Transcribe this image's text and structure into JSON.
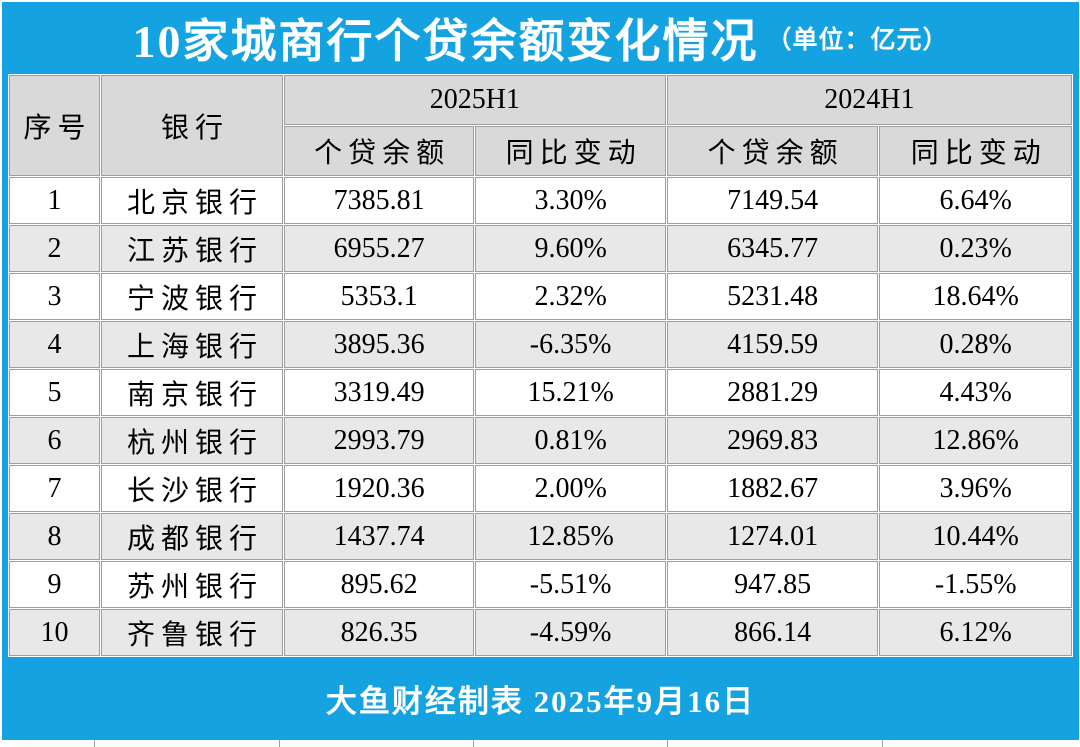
{
  "title": {
    "main": "10家城商行个贷余额变化情况",
    "unit": "（单位：亿元）"
  },
  "footer": {
    "text": "大鱼财经制表 2025年9月16日"
  },
  "colors": {
    "accent_blue": "#14a3e0",
    "header_bg": "#d9d9d9",
    "alt_row_bg": "#e8e8e8",
    "grid_line": "#9e9e9e",
    "title_text": "#ffffff",
    "body_text": "#000000"
  },
  "chart_data": {
    "type": "table",
    "title": "10家城商行个贷余额变化情况（单位：亿元）",
    "column_groups": [
      {
        "label": "2025H1",
        "span": 2
      },
      {
        "label": "2024H1",
        "span": 2
      }
    ],
    "columns": [
      "序号",
      "银行",
      "个贷余额",
      "同比变动",
      "个贷余额",
      "同比变动"
    ],
    "rows": [
      [
        "1",
        "北京银行",
        "7385.81",
        "3.30%",
        "7149.54",
        "6.64%"
      ],
      [
        "2",
        "江苏银行",
        "6955.27",
        "9.60%",
        "6345.77",
        "0.23%"
      ],
      [
        "3",
        "宁波银行",
        "5353.1",
        "2.32%",
        "5231.48",
        "18.64%"
      ],
      [
        "4",
        "上海银行",
        "3895.36",
        "-6.35%",
        "4159.59",
        "0.28%"
      ],
      [
        "5",
        "南京银行",
        "3319.49",
        "15.21%",
        "2881.29",
        "4.43%"
      ],
      [
        "6",
        "杭州银行",
        "2993.79",
        "0.81%",
        "2969.83",
        "12.86%"
      ],
      [
        "7",
        "长沙银行",
        "1920.36",
        "2.00%",
        "1882.67",
        "3.96%"
      ],
      [
        "8",
        "成都银行",
        "1437.74",
        "12.85%",
        "1274.01",
        "10.44%"
      ],
      [
        "9",
        "苏州银行",
        "895.62",
        "-5.51%",
        "947.85",
        "-1.55%"
      ],
      [
        "10",
        "齐鲁银行",
        "826.35",
        "-4.59%",
        "866.14",
        "6.12%"
      ]
    ],
    "source_note": "大鱼财经制表 2025年9月16日"
  }
}
